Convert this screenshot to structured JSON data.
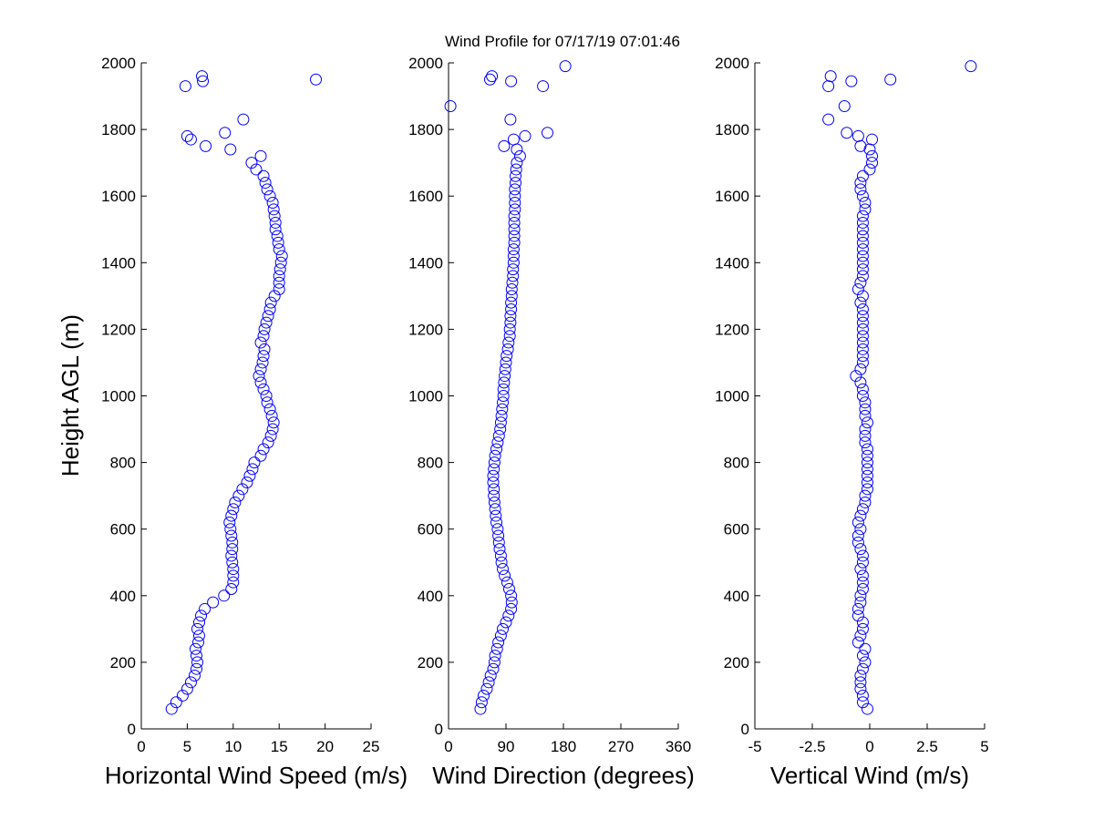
{
  "chart_data": [
    {
      "type": "scatter",
      "title": "Wind Profile for  07/17/19 07:01:46",
      "ylabel": "Height AGL (m)",
      "xlabel": "Horizontal Wind Speed (m/s)",
      "color": "#0000ff",
      "marker": "o",
      "xlim": [
        0,
        25
      ],
      "xticks": [
        0,
        5,
        10,
        15,
        20,
        25
      ],
      "ylim": [
        0,
        2000
      ],
      "yticks": [
        0,
        200,
        400,
        600,
        800,
        1000,
        1200,
        1400,
        1600,
        1800,
        2000
      ],
      "x": [
        3.3,
        3.8,
        4.5,
        5.0,
        5.4,
        5.8,
        6.0,
        6.1,
        6.0,
        5.9,
        6.2,
        6.3,
        6.1,
        6.3,
        6.5,
        6.9,
        7.8,
        9.0,
        9.8,
        10.0,
        10.0,
        10.0,
        9.9,
        9.8,
        9.9,
        9.9,
        9.8,
        9.7,
        9.6,
        9.8,
        10.0,
        10.2,
        10.6,
        11.0,
        11.5,
        11.8,
        12.1,
        12.3,
        13.0,
        13.3,
        13.8,
        14.1,
        14.3,
        14.4,
        14.2,
        14.0,
        13.7,
        13.6,
        13.3,
        13.0,
        12.8,
        13.0,
        13.2,
        13.3,
        13.4,
        13.0,
        13.3,
        13.4,
        13.6,
        13.8,
        14.0,
        14.1,
        14.5,
        15.0,
        15.0,
        15.0,
        15.1,
        15.2,
        15.3,
        15.0,
        14.9,
        14.8,
        14.6,
        14.6,
        14.5,
        14.4,
        14.3,
        14.0,
        13.7,
        13.5,
        13.3,
        12.5,
        12.0,
        13.0,
        9.7,
        7.0,
        5.4,
        5.0,
        9.1,
        11.1,
        null,
        4.8,
        6.7,
        19.0,
        6.6,
        null
      ],
      "y": [
        60,
        80,
        100,
        120,
        140,
        160,
        180,
        200,
        220,
        240,
        260,
        280,
        300,
        320,
        340,
        360,
        380,
        400,
        420,
        440,
        460,
        480,
        500,
        520,
        540,
        560,
        580,
        600,
        620,
        640,
        660,
        680,
        700,
        720,
        740,
        760,
        780,
        800,
        820,
        840,
        860,
        880,
        900,
        920,
        940,
        960,
        980,
        1000,
        1020,
        1040,
        1060,
        1080,
        1100,
        1120,
        1140,
        1160,
        1180,
        1200,
        1220,
        1240,
        1260,
        1280,
        1300,
        1320,
        1340,
        1360,
        1380,
        1400,
        1420,
        1440,
        1460,
        1480,
        1500,
        1520,
        1540,
        1560,
        1580,
        1600,
        1620,
        1640,
        1660,
        1680,
        1700,
        1720,
        1740,
        1750,
        1770,
        1780,
        1790,
        1830,
        1870,
        1930,
        1945,
        1950,
        1960,
        1990
      ]
    },
    {
      "type": "scatter",
      "xlabel": "Wind Direction (degrees)",
      "color": "#0000ff",
      "marker": "o",
      "xlim": [
        0,
        360
      ],
      "xticks": [
        0,
        90,
        180,
        270,
        360
      ],
      "ylim": [
        0,
        2000
      ],
      "yticks": [
        0,
        200,
        400,
        600,
        800,
        1000,
        1200,
        1400,
        1600,
        1800,
        2000
      ],
      "x": [
        50,
        52,
        55,
        60,
        63,
        66,
        70,
        72,
        73,
        76,
        78,
        82,
        85,
        90,
        94,
        98,
        99,
        98,
        95,
        92,
        88,
        85,
        83,
        82,
        80,
        79,
        78,
        77,
        75,
        74,
        73,
        72,
        71,
        71,
        70,
        70,
        71,
        72,
        73,
        75,
        77,
        79,
        81,
        82,
        83,
        84,
        85,
        86,
        86,
        87,
        88,
        89,
        90,
        91,
        93,
        94,
        96,
        96,
        97,
        97,
        98,
        98,
        99,
        99,
        100,
        101,
        101,
        102,
        102,
        102,
        103,
        103,
        103,
        103,
        103,
        104,
        104,
        104,
        104,
        105,
        105,
        106,
        107,
        112,
        107,
        87,
        102,
        120,
        155,
        97,
        3,
        148,
        98,
        65,
        68,
        183
      ],
      "y": [
        60,
        80,
        100,
        120,
        140,
        160,
        180,
        200,
        220,
        240,
        260,
        280,
        300,
        320,
        340,
        360,
        380,
        400,
        420,
        440,
        460,
        480,
        500,
        520,
        540,
        560,
        580,
        600,
        620,
        640,
        660,
        680,
        700,
        720,
        740,
        760,
        780,
        800,
        820,
        840,
        860,
        880,
        900,
        920,
        940,
        960,
        980,
        1000,
        1020,
        1040,
        1060,
        1080,
        1100,
        1120,
        1140,
        1160,
        1180,
        1200,
        1220,
        1240,
        1260,
        1280,
        1300,
        1320,
        1340,
        1360,
        1380,
        1400,
        1420,
        1440,
        1460,
        1480,
        1500,
        1520,
        1540,
        1560,
        1580,
        1600,
        1620,
        1640,
        1660,
        1680,
        1700,
        1720,
        1740,
        1750,
        1770,
        1780,
        1790,
        1830,
        1870,
        1930,
        1945,
        1950,
        1960,
        1990
      ]
    },
    {
      "type": "scatter",
      "xlabel": "Vertical Wind (m/s)",
      "color": "#0000ff",
      "marker": "o",
      "xlim": [
        -5,
        5
      ],
      "xticks": [
        -5,
        -2.5,
        0,
        2.5,
        5
      ],
      "ylim": [
        0,
        2000
      ],
      "yticks": [
        0,
        200,
        400,
        600,
        800,
        1000,
        1200,
        1400,
        1600,
        1800,
        2000
      ],
      "x": [
        -0.1,
        -0.3,
        -0.3,
        -0.4,
        -0.4,
        -0.4,
        -0.3,
        -0.2,
        -0.3,
        -0.2,
        -0.5,
        -0.4,
        -0.3,
        -0.3,
        -0.5,
        -0.5,
        -0.4,
        -0.4,
        -0.3,
        -0.3,
        -0.3,
        -0.4,
        -0.3,
        -0.3,
        -0.4,
        -0.5,
        -0.5,
        -0.4,
        -0.5,
        -0.4,
        -0.3,
        -0.2,
        -0.2,
        -0.1,
        -0.1,
        -0.1,
        -0.1,
        -0.1,
        -0.1,
        -0.1,
        -0.2,
        -0.2,
        -0.2,
        -0.1,
        -0.2,
        -0.2,
        -0.2,
        -0.3,
        -0.3,
        -0.4,
        -0.6,
        -0.4,
        -0.3,
        -0.3,
        -0.3,
        -0.3,
        -0.3,
        -0.3,
        -0.3,
        -0.3,
        -0.3,
        -0.4,
        -0.3,
        -0.5,
        -0.4,
        -0.3,
        -0.3,
        -0.3,
        -0.3,
        -0.3,
        -0.3,
        -0.3,
        -0.3,
        -0.3,
        -0.3,
        -0.2,
        -0.2,
        -0.3,
        -0.4,
        -0.4,
        -0.3,
        0.0,
        0.1,
        0.1,
        0.0,
        -0.4,
        0.1,
        -0.5,
        -1.0,
        -1.8,
        -1.1,
        -1.8,
        -0.8,
        0.9,
        -1.7,
        4.4
      ],
      "y": [
        60,
        80,
        100,
        120,
        140,
        160,
        180,
        200,
        220,
        240,
        260,
        280,
        300,
        320,
        340,
        360,
        380,
        400,
        420,
        440,
        460,
        480,
        500,
        520,
        540,
        560,
        580,
        600,
        620,
        640,
        660,
        680,
        700,
        720,
        740,
        760,
        780,
        800,
        820,
        840,
        860,
        880,
        900,
        920,
        940,
        960,
        980,
        1000,
        1020,
        1040,
        1060,
        1080,
        1100,
        1120,
        1140,
        1160,
        1180,
        1200,
        1220,
        1240,
        1260,
        1280,
        1300,
        1320,
        1340,
        1360,
        1380,
        1400,
        1420,
        1440,
        1460,
        1480,
        1500,
        1520,
        1540,
        1560,
        1580,
        1600,
        1620,
        1640,
        1660,
        1680,
        1700,
        1720,
        1740,
        1750,
        1770,
        1780,
        1790,
        1830,
        1870,
        1930,
        1945,
        1950,
        1960,
        1990
      ]
    }
  ]
}
